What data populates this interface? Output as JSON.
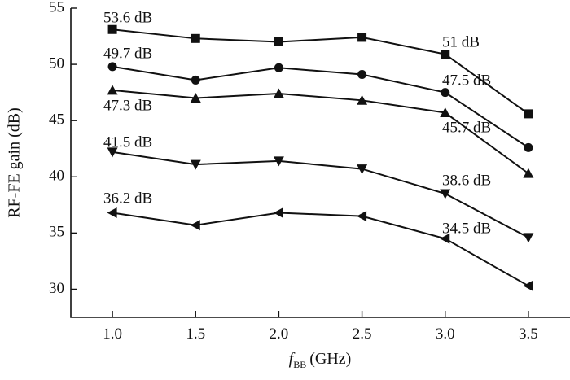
{
  "chart_data": {
    "type": "line",
    "title": "",
    "xlabel_symbol": "f",
    "xlabel_subscript": "BB",
    "xlabel_unit": "(GHz)",
    "ylabel": "RF-FE gain (dB)",
    "x": [
      1.0,
      1.5,
      2.0,
      2.5,
      3.0,
      3.5
    ],
    "x_tick_labels": [
      "1.0",
      "1.5",
      "2.0",
      "2.5",
      "3.0",
      "3.5"
    ],
    "xlim": [
      0.75,
      3.75
    ],
    "ylim": [
      27.5,
      55
    ],
    "y_ticks": [
      30,
      35,
      40,
      45,
      50,
      55
    ],
    "y_tick_labels": [
      "30",
      "35",
      "40",
      "45",
      "50",
      "55"
    ],
    "grid": false,
    "series": [
      {
        "marker": "square",
        "values": [
          53.1,
          52.3,
          52.0,
          52.4,
          50.9,
          45.6
        ]
      },
      {
        "marker": "circle",
        "values": [
          49.8,
          48.6,
          49.7,
          49.1,
          47.5,
          42.6
        ]
      },
      {
        "marker": "triangle-up",
        "values": [
          47.7,
          47.0,
          47.4,
          46.8,
          45.7,
          40.3
        ]
      },
      {
        "marker": "triangle-down",
        "values": [
          42.2,
          41.1,
          41.4,
          40.7,
          38.5,
          34.6
        ]
      },
      {
        "marker": "triangle-left",
        "values": [
          36.8,
          35.7,
          36.8,
          36.5,
          34.5,
          30.3
        ]
      }
    ],
    "annotations": [
      {
        "text": "53.6 dB"
      },
      {
        "text": "49.7 dB"
      },
      {
        "text": "47.3 dB"
      },
      {
        "text": "41.5 dB"
      },
      {
        "text": "36.2 dB"
      },
      {
        "text": "51 dB"
      },
      {
        "text": "47.5 dB"
      },
      {
        "text": "45.7 dB"
      },
      {
        "text": "38.6 dB"
      },
      {
        "text": "34.5 dB"
      }
    ]
  }
}
